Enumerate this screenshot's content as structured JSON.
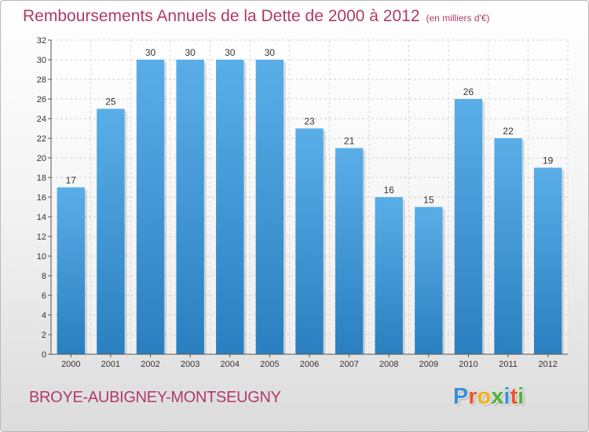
{
  "header": {
    "title": "Remboursements Annuels de la Dette de 2000 à 2012",
    "subtitle": "(en milliers d'€)"
  },
  "footer": {
    "commune": "BROYE-AUBIGNEY-MONTSEUGNY",
    "logo_letters": [
      "P",
      "r",
      "o",
      "x",
      "i",
      "t",
      "i"
    ],
    "logo_colors": [
      "#3a8fd6",
      "#e8552e",
      "#f0b21c",
      "#4fb23a",
      "#3a8fd6",
      "#e8552e",
      "#4fb23a"
    ]
  },
  "colors": {
    "bar_top": "#5aaee8",
    "bar_bottom": "#2a7fc0",
    "title": "#b03a6a"
  },
  "chart_data": {
    "type": "bar",
    "categories": [
      "2000",
      "2001",
      "2002",
      "2003",
      "2004",
      "2005",
      "2006",
      "2007",
      "2008",
      "2009",
      "2010",
      "2011",
      "2012"
    ],
    "values": [
      17,
      25,
      30,
      30,
      30,
      30,
      23,
      21,
      16,
      15,
      26,
      22,
      19
    ],
    "ylim": [
      0,
      32
    ],
    "yticks": [
      0,
      2,
      4,
      6,
      8,
      10,
      12,
      14,
      16,
      18,
      20,
      22,
      24,
      26,
      28,
      30,
      32
    ],
    "grid": true
  }
}
